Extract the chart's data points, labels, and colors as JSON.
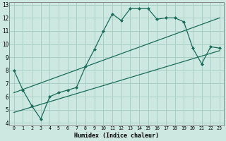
{
  "xlabel": "Humidex (Indice chaleur)",
  "bg_color": "#cce8e0",
  "line_color": "#1a6b5a",
  "grid_color": "#aacfc5",
  "xlim": [
    -0.5,
    23.5
  ],
  "ylim": [
    3.8,
    13.2
  ],
  "xticks": [
    0,
    1,
    2,
    3,
    4,
    5,
    6,
    7,
    8,
    9,
    10,
    11,
    12,
    13,
    14,
    15,
    16,
    17,
    18,
    19,
    20,
    21,
    22,
    23
  ],
  "yticks": [
    4,
    5,
    6,
    7,
    8,
    9,
    10,
    11,
    12,
    13
  ],
  "line1_x": [
    0,
    1,
    2,
    3,
    4,
    5,
    6,
    7,
    8,
    9,
    10,
    11,
    12,
    13,
    14,
    15,
    16,
    17,
    18,
    19,
    20,
    21,
    22,
    23
  ],
  "line1_y": [
    8.0,
    6.5,
    5.3,
    4.3,
    6.0,
    6.3,
    6.5,
    6.7,
    8.3,
    9.6,
    11.0,
    12.3,
    11.8,
    12.7,
    12.7,
    12.7,
    11.9,
    12.0,
    12.0,
    11.7,
    9.7,
    8.5,
    9.8,
    9.7
  ],
  "line2_x": [
    0,
    23
  ],
  "line2_y": [
    6.3,
    12.0
  ],
  "line3_x": [
    0,
    23
  ],
  "line3_y": [
    4.8,
    9.5
  ]
}
